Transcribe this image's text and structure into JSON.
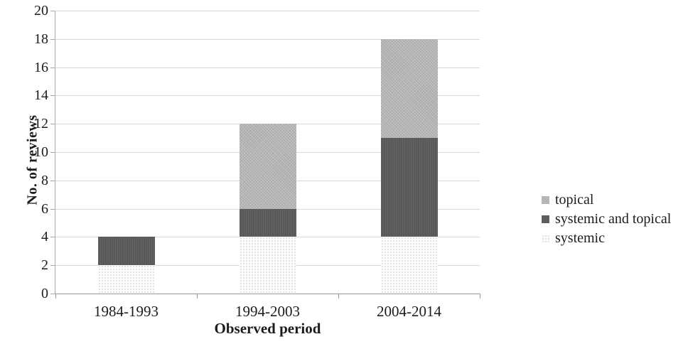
{
  "chart_data": {
    "type": "bar",
    "stacked": true,
    "title": "",
    "categories": [
      "1984-1993",
      "1994-2003",
      "2004-2014"
    ],
    "series": [
      {
        "name": "systemic",
        "values": [
          2,
          4,
          4
        ]
      },
      {
        "name": "systemic and topical",
        "values": [
          2,
          2,
          7
        ]
      },
      {
        "name": "topical",
        "values": [
          0,
          6,
          7
        ]
      }
    ],
    "stack_totals": [
      4,
      12,
      18
    ],
    "xlabel": "Observed period",
    "ylabel": "No. of reviews",
    "ylim": [
      0,
      20
    ],
    "ytick_step": 2,
    "ytick_labels": [
      "0",
      "2",
      "4",
      "6",
      "8",
      "10",
      "12",
      "14",
      "16",
      "18",
      "20"
    ],
    "grid": true,
    "legend_position": "right"
  },
  "legend": {
    "items": [
      {
        "label": "topical",
        "series": "topical"
      },
      {
        "label": "systemic and topical",
        "series": "systemic and topical"
      },
      {
        "label": "systemic",
        "series": "systemic"
      }
    ]
  },
  "colors": {
    "topical": "#b4b4b4",
    "systemic_and_topical": "#595959",
    "systemic_base": "#fdfdfd",
    "systemic_dot": "#d9d9d9",
    "gridline": "#d8d8d8",
    "axis": "#a9a9a9",
    "text": "#1c1c1c"
  }
}
